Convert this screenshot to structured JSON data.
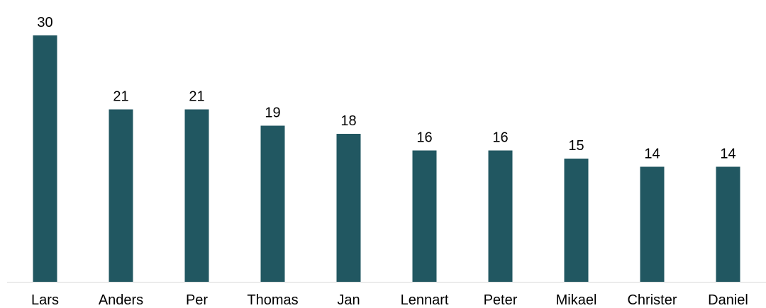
{
  "chart_data": {
    "type": "bar",
    "title": "",
    "xlabel": "",
    "ylabel": "",
    "categories": [
      "Lars",
      "Anders",
      "Per",
      "Thomas",
      "Jan",
      "Lennart",
      "Peter",
      "Mikael",
      "Christer",
      "Daniel"
    ],
    "values": [
      30,
      21,
      21,
      19,
      18,
      16,
      16,
      15,
      14,
      14
    ],
    "ylim": [
      0,
      30
    ],
    "grid": false,
    "legend": "none",
    "data_labels": true,
    "bar_color": "#215761",
    "axis_color": "#d9d9d9"
  }
}
